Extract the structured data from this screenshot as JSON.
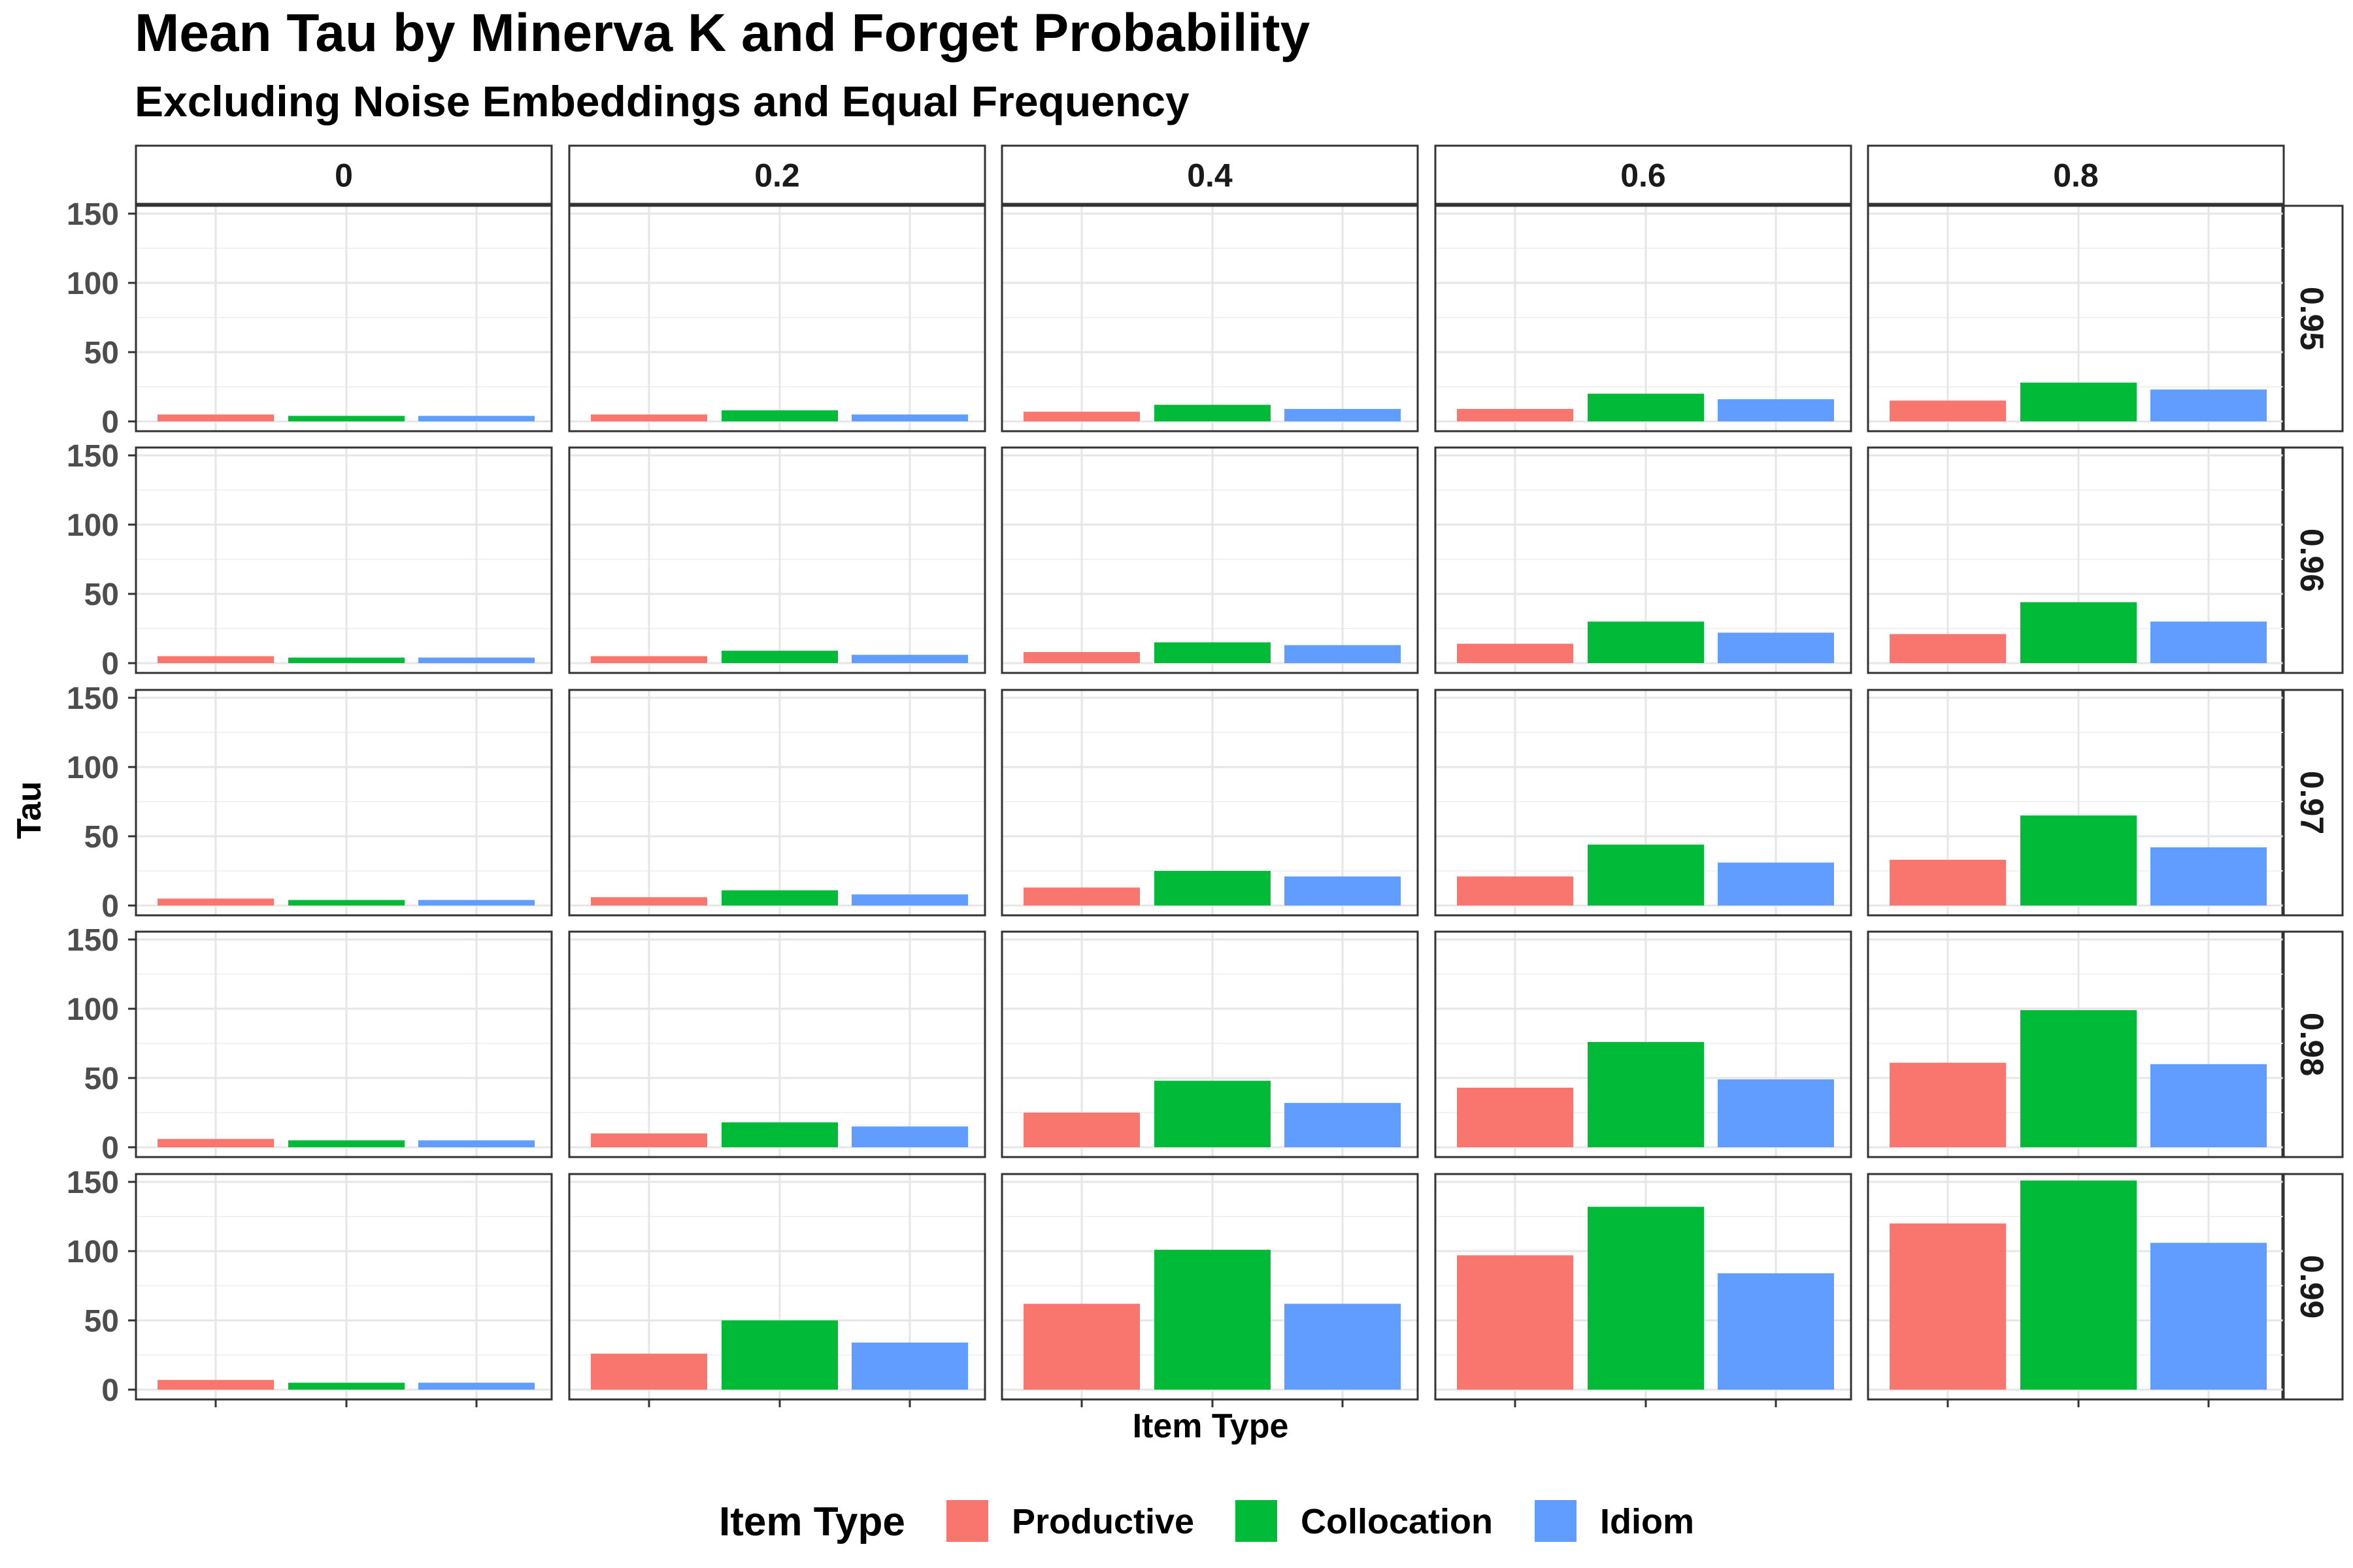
{
  "chart_data": {
    "type": "bar",
    "title": "Mean Tau by Minerva K and Forget Probability",
    "subtitle": "Excluding Noise Embeddings and Equal Frequency",
    "xlabel": "Item Type",
    "ylabel": "Tau",
    "ylim": [
      0,
      155
    ],
    "yticks": [
      0,
      50,
      100,
      150
    ],
    "grid": true,
    "legend_position": "bottom",
    "legend_title": "Item Type",
    "categories": [
      "Productive",
      "Collocation",
      "Idiom"
    ],
    "colors": {
      "Productive": "#F8766D",
      "Collocation": "#00BA38",
      "Idiom": "#619CFF"
    },
    "col_facets": [
      "0",
      "0.2",
      "0.4",
      "0.6",
      "0.8"
    ],
    "row_facets": [
      "0.95",
      "0.96",
      "0.97",
      "0.98",
      "0.99"
    ],
    "values": {
      "0.95": [
        [
          5,
          4,
          4
        ],
        [
          5,
          8,
          5
        ],
        [
          7,
          12,
          9
        ],
        [
          9,
          20,
          16
        ],
        [
          15,
          28,
          23
        ]
      ],
      "0.96": [
        [
          5,
          4,
          4
        ],
        [
          5,
          9,
          6
        ],
        [
          8,
          15,
          13
        ],
        [
          14,
          30,
          22
        ],
        [
          21,
          44,
          30
        ]
      ],
      "0.97": [
        [
          5,
          4,
          4
        ],
        [
          6,
          11,
          8
        ],
        [
          13,
          25,
          21
        ],
        [
          21,
          44,
          31
        ],
        [
          33,
          65,
          42
        ]
      ],
      "0.98": [
        [
          6,
          5,
          5
        ],
        [
          10,
          18,
          15
        ],
        [
          25,
          48,
          32
        ],
        [
          43,
          76,
          49
        ],
        [
          61,
          99,
          60
        ]
      ],
      "0.99": [
        [
          7,
          5,
          5
        ],
        [
          26,
          50,
          34
        ],
        [
          62,
          101,
          62
        ],
        [
          97,
          132,
          84
        ],
        [
          120,
          151,
          106
        ]
      ]
    }
  }
}
